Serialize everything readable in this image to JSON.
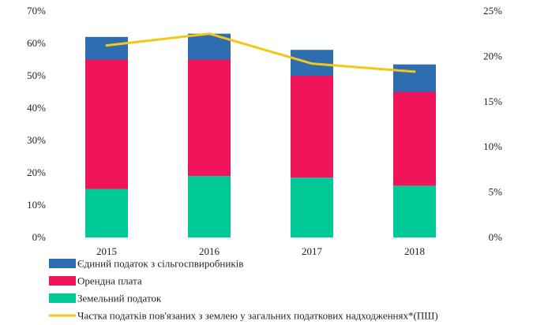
{
  "chart_data": {
    "type": "bar",
    "stacked": true,
    "categories": [
      "2015",
      "2016",
      "2017",
      "2018"
    ],
    "series": [
      {
        "name": "Земельний податок",
        "type": "bar",
        "axis": "left",
        "color": "#00C896",
        "values": [
          15,
          19,
          18.5,
          16
        ]
      },
      {
        "name": "Орендна плата",
        "type": "bar",
        "axis": "left",
        "color": "#F0145A",
        "values": [
          40,
          36,
          31.5,
          29
        ]
      },
      {
        "name": "Єдиний податок з сільгоспвиробників",
        "type": "bar",
        "axis": "left",
        "color": "#2E6DB0",
        "values": [
          7,
          8,
          8,
          8.5
        ]
      },
      {
        "name": "Частка податків пов'язаних з землею у загальних податкових надходженнях*(ПШ)",
        "type": "line",
        "axis": "right",
        "color": "#F5C518",
        "values": [
          21.2,
          22.5,
          19.2,
          18.3
        ]
      }
    ],
    "y_left": {
      "min": 0,
      "max": 70,
      "step": 10,
      "suffix": "%"
    },
    "y_right": {
      "min": 0,
      "max": 25,
      "step": 5,
      "suffix": "%"
    },
    "legend": {
      "placement": "bottom-left",
      "order": [
        "Єдиний податок з сільгоспвиробників",
        "Орендна плата",
        "Земельний податок",
        "Частка податків пов'язаних з землею у загальних податкових надходженнях*(ПШ)"
      ]
    },
    "grid": false
  }
}
